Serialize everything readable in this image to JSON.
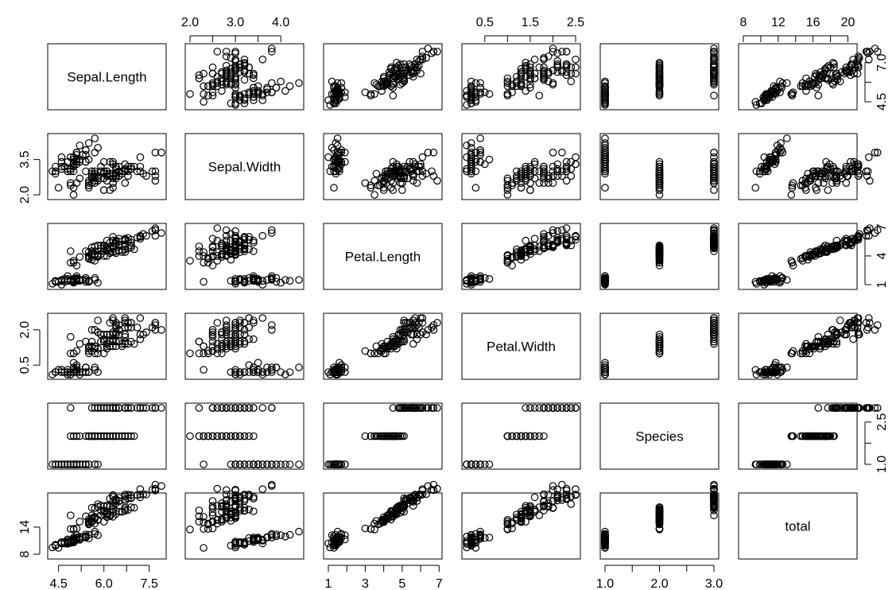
{
  "chart_data": {
    "type": "scatter",
    "kind": "scatterplot-matrix",
    "variables": [
      "Sepal.Length",
      "Sepal.Width",
      "Petal.Length",
      "Petal.Width",
      "Species",
      "total"
    ],
    "ranges": {
      "Sepal.Length": [
        4.3,
        7.9
      ],
      "Sepal.Width": [
        2.0,
        4.4
      ],
      "Petal.Length": [
        1.0,
        6.9
      ],
      "Petal.Width": [
        0.1,
        2.5
      ],
      "Species": [
        1.0,
        3.0
      ],
      "total": [
        8.0,
        20.5
      ]
    },
    "axes": {
      "top": [
        {
          "var": "Sepal.Width",
          "ticks": [
            "2.0",
            "3.0",
            "4.0"
          ]
        },
        {
          "var": "Petal.Width",
          "ticks": [
            "0.5",
            "1.5",
            "2.5"
          ]
        },
        {
          "var": "total",
          "ticks": [
            "8",
            "12",
            "16",
            "20"
          ]
        }
      ],
      "bottom": [
        {
          "var": "Sepal.Length",
          "ticks": [
            "4.5",
            "6.0",
            "7.5"
          ]
        },
        {
          "var": "Petal.Length",
          "ticks": [
            "1",
            "3",
            "5",
            "7"
          ]
        },
        {
          "var": "Species",
          "ticks": [
            "1.0",
            "2.0",
            "3.0"
          ]
        }
      ],
      "left": [
        {
          "var": "Sepal.Width",
          "ticks": [
            "2.0",
            "3.5"
          ]
        },
        {
          "var": "Petal.Width",
          "ticks": [
            "0.5",
            "2.0"
          ]
        },
        {
          "var": "total",
          "ticks": [
            "8",
            "14"
          ]
        }
      ],
      "right": [
        {
          "var": "Sepal.Length",
          "ticks": [
            "4.5",
            "7.0"
          ]
        },
        {
          "var": "Petal.Length",
          "ticks": [
            "1",
            "4",
            "7"
          ]
        },
        {
          "var": "Species",
          "ticks": [
            "1.0",
            "2.5"
          ]
        }
      ]
    },
    "groups": [
      {
        "species": 1,
        "points": [
          [
            5.1,
            3.5,
            1.4,
            0.2
          ],
          [
            4.9,
            3.0,
            1.4,
            0.2
          ],
          [
            4.7,
            3.2,
            1.3,
            0.2
          ],
          [
            4.6,
            3.1,
            1.5,
            0.2
          ],
          [
            5.0,
            3.6,
            1.4,
            0.2
          ],
          [
            5.4,
            3.9,
            1.7,
            0.4
          ],
          [
            4.6,
            3.4,
            1.4,
            0.3
          ],
          [
            5.0,
            3.4,
            1.5,
            0.2
          ],
          [
            4.4,
            2.9,
            1.4,
            0.2
          ],
          [
            4.9,
            3.1,
            1.5,
            0.1
          ],
          [
            5.4,
            3.7,
            1.5,
            0.2
          ],
          [
            4.8,
            3.4,
            1.6,
            0.2
          ],
          [
            4.8,
            3.0,
            1.4,
            0.1
          ],
          [
            4.3,
            3.0,
            1.1,
            0.1
          ],
          [
            5.8,
            4.0,
            1.2,
            0.2
          ],
          [
            5.7,
            4.4,
            1.5,
            0.4
          ],
          [
            5.4,
            3.9,
            1.3,
            0.4
          ],
          [
            5.1,
            3.5,
            1.4,
            0.3
          ],
          [
            5.7,
            3.8,
            1.7,
            0.3
          ],
          [
            5.1,
            3.8,
            1.5,
            0.3
          ],
          [
            5.4,
            3.4,
            1.7,
            0.2
          ],
          [
            5.1,
            3.7,
            1.5,
            0.4
          ],
          [
            4.6,
            3.6,
            1.0,
            0.2
          ],
          [
            5.1,
            3.3,
            1.7,
            0.5
          ],
          [
            4.8,
            3.4,
            1.9,
            0.2
          ],
          [
            5.0,
            3.0,
            1.6,
            0.2
          ],
          [
            5.0,
            3.4,
            1.6,
            0.4
          ],
          [
            5.2,
            3.5,
            1.5,
            0.2
          ],
          [
            5.2,
            3.4,
            1.4,
            0.2
          ],
          [
            4.7,
            3.2,
            1.6,
            0.2
          ],
          [
            4.8,
            3.1,
            1.6,
            0.2
          ],
          [
            5.4,
            3.4,
            1.5,
            0.4
          ],
          [
            5.2,
            4.1,
            1.5,
            0.1
          ],
          [
            5.5,
            4.2,
            1.4,
            0.2
          ],
          [
            4.9,
            3.1,
            1.5,
            0.2
          ],
          [
            5.0,
            3.2,
            1.2,
            0.2
          ],
          [
            5.5,
            3.5,
            1.3,
            0.2
          ],
          [
            4.9,
            3.6,
            1.4,
            0.1
          ],
          [
            4.4,
            3.0,
            1.3,
            0.2
          ],
          [
            5.1,
            3.4,
            1.5,
            0.2
          ],
          [
            5.0,
            3.5,
            1.3,
            0.3
          ],
          [
            4.5,
            2.3,
            1.3,
            0.3
          ],
          [
            4.4,
            3.2,
            1.3,
            0.2
          ],
          [
            5.0,
            3.5,
            1.6,
            0.6
          ],
          [
            5.1,
            3.8,
            1.9,
            0.4
          ],
          [
            4.8,
            3.0,
            1.4,
            0.3
          ],
          [
            5.1,
            3.8,
            1.6,
            0.2
          ],
          [
            4.6,
            3.2,
            1.4,
            0.2
          ],
          [
            5.3,
            3.7,
            1.5,
            0.2
          ],
          [
            5.0,
            3.3,
            1.4,
            0.2
          ]
        ]
      },
      {
        "species": 2,
        "points": [
          [
            7.0,
            3.2,
            4.7,
            1.4
          ],
          [
            6.4,
            3.2,
            4.5,
            1.5
          ],
          [
            6.9,
            3.1,
            4.9,
            1.5
          ],
          [
            5.5,
            2.3,
            4.0,
            1.3
          ],
          [
            6.5,
            2.8,
            4.6,
            1.5
          ],
          [
            5.7,
            2.8,
            4.5,
            1.3
          ],
          [
            6.3,
            3.3,
            4.7,
            1.6
          ],
          [
            4.9,
            2.4,
            3.3,
            1.0
          ],
          [
            6.6,
            2.9,
            4.6,
            1.3
          ],
          [
            5.2,
            2.7,
            3.9,
            1.4
          ],
          [
            5.0,
            2.0,
            3.5,
            1.0
          ],
          [
            5.9,
            3.0,
            4.2,
            1.5
          ],
          [
            6.0,
            2.2,
            4.0,
            1.0
          ],
          [
            6.1,
            2.9,
            4.7,
            1.4
          ],
          [
            5.6,
            2.9,
            3.6,
            1.3
          ],
          [
            6.7,
            3.1,
            4.4,
            1.4
          ],
          [
            5.6,
            3.0,
            4.5,
            1.5
          ],
          [
            5.8,
            2.7,
            4.1,
            1.0
          ],
          [
            6.2,
            2.2,
            4.5,
            1.5
          ],
          [
            5.6,
            2.5,
            3.9,
            1.1
          ],
          [
            5.9,
            3.2,
            4.8,
            1.8
          ],
          [
            6.1,
            2.8,
            4.0,
            1.3
          ],
          [
            6.3,
            2.5,
            4.9,
            1.5
          ],
          [
            6.1,
            2.8,
            4.7,
            1.2
          ],
          [
            6.4,
            2.9,
            4.3,
            1.3
          ],
          [
            6.6,
            3.0,
            4.4,
            1.4
          ],
          [
            6.8,
            2.8,
            4.8,
            1.4
          ],
          [
            6.7,
            3.0,
            5.0,
            1.7
          ],
          [
            6.0,
            2.9,
            4.5,
            1.5
          ],
          [
            5.7,
            2.6,
            3.5,
            1.0
          ],
          [
            5.5,
            2.4,
            3.8,
            1.1
          ],
          [
            5.5,
            2.4,
            3.7,
            1.0
          ],
          [
            5.8,
            2.7,
            3.9,
            1.2
          ],
          [
            6.0,
            2.7,
            5.1,
            1.6
          ],
          [
            5.4,
            3.0,
            4.5,
            1.5
          ],
          [
            6.0,
            3.4,
            4.5,
            1.6
          ],
          [
            6.7,
            3.1,
            4.7,
            1.5
          ],
          [
            6.3,
            2.3,
            4.4,
            1.3
          ],
          [
            5.6,
            3.0,
            4.1,
            1.3
          ],
          [
            5.5,
            2.5,
            4.0,
            1.3
          ],
          [
            5.5,
            2.6,
            4.4,
            1.2
          ],
          [
            6.1,
            3.0,
            4.6,
            1.4
          ],
          [
            5.8,
            2.6,
            4.0,
            1.2
          ],
          [
            5.0,
            2.3,
            3.3,
            1.0
          ],
          [
            5.6,
            2.7,
            4.2,
            1.3
          ],
          [
            5.7,
            3.0,
            4.2,
            1.2
          ],
          [
            5.7,
            2.9,
            4.2,
            1.3
          ],
          [
            6.2,
            2.9,
            4.3,
            1.3
          ],
          [
            5.1,
            2.5,
            3.0,
            1.1
          ],
          [
            5.7,
            2.8,
            4.1,
            1.3
          ]
        ]
      },
      {
        "species": 3,
        "points": [
          [
            6.3,
            3.3,
            6.0,
            2.5
          ],
          [
            5.8,
            2.7,
            5.1,
            1.9
          ],
          [
            7.1,
            3.0,
            5.9,
            2.1
          ],
          [
            6.3,
            2.9,
            5.6,
            1.8
          ],
          [
            6.5,
            3.0,
            5.8,
            2.2
          ],
          [
            7.6,
            3.0,
            6.6,
            2.1
          ],
          [
            4.9,
            2.5,
            4.5,
            1.7
          ],
          [
            7.3,
            2.9,
            6.3,
            1.8
          ],
          [
            6.7,
            2.5,
            5.8,
            1.8
          ],
          [
            7.2,
            3.6,
            6.1,
            2.5
          ],
          [
            6.5,
            3.2,
            5.1,
            2.0
          ],
          [
            6.4,
            2.7,
            5.3,
            1.9
          ],
          [
            6.8,
            3.0,
            5.5,
            2.1
          ],
          [
            5.7,
            2.5,
            5.0,
            2.0
          ],
          [
            5.8,
            2.8,
            5.1,
            2.4
          ],
          [
            6.4,
            3.2,
            5.3,
            2.3
          ],
          [
            6.5,
            3.0,
            5.5,
            1.8
          ],
          [
            7.7,
            3.8,
            6.7,
            2.2
          ],
          [
            7.7,
            2.6,
            6.9,
            2.3
          ],
          [
            6.0,
            2.2,
            5.0,
            1.5
          ],
          [
            6.9,
            3.2,
            5.7,
            2.3
          ],
          [
            5.6,
            2.8,
            4.9,
            2.0
          ],
          [
            7.7,
            2.8,
            6.7,
            2.0
          ],
          [
            6.3,
            2.7,
            4.9,
            1.8
          ],
          [
            6.7,
            3.3,
            5.7,
            2.1
          ],
          [
            7.2,
            3.2,
            6.0,
            1.8
          ],
          [
            6.2,
            2.8,
            4.8,
            1.8
          ],
          [
            6.1,
            3.0,
            4.9,
            1.8
          ],
          [
            6.4,
            2.8,
            5.6,
            2.1
          ],
          [
            7.2,
            3.0,
            5.8,
            1.6
          ],
          [
            7.4,
            2.8,
            6.1,
            1.9
          ],
          [
            7.9,
            3.8,
            6.4,
            2.0
          ],
          [
            6.4,
            2.8,
            5.6,
            2.2
          ],
          [
            6.3,
            2.8,
            5.1,
            1.5
          ],
          [
            6.1,
            2.6,
            5.6,
            1.4
          ],
          [
            7.7,
            3.0,
            6.1,
            2.3
          ],
          [
            6.3,
            3.4,
            5.6,
            2.4
          ],
          [
            6.4,
            3.1,
            5.5,
            1.8
          ],
          [
            6.0,
            3.0,
            4.8,
            1.8
          ],
          [
            6.9,
            3.1,
            5.4,
            2.1
          ],
          [
            6.7,
            3.1,
            5.6,
            2.4
          ],
          [
            6.9,
            3.1,
            5.1,
            2.3
          ],
          [
            5.8,
            2.7,
            5.1,
            1.9
          ],
          [
            6.8,
            3.2,
            5.9,
            2.3
          ],
          [
            6.7,
            3.3,
            5.7,
            2.5
          ],
          [
            6.7,
            3.0,
            5.2,
            2.3
          ],
          [
            6.3,
            2.5,
            5.0,
            1.9
          ],
          [
            6.5,
            3.0,
            5.2,
            2.0
          ],
          [
            6.2,
            3.4,
            5.4,
            2.3
          ],
          [
            5.9,
            3.0,
            5.1,
            1.8
          ]
        ]
      }
    ]
  }
}
